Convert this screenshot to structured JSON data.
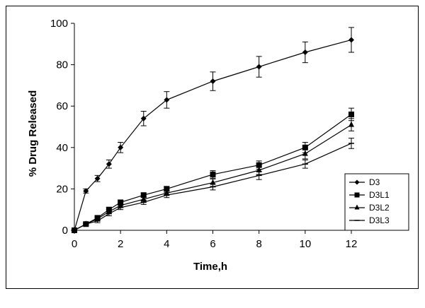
{
  "chart_data": {
    "type": "line",
    "title": "",
    "xlabel": "Time,h",
    "ylabel": "% Drug Released",
    "xlim": [
      0,
      12
    ],
    "ylim": [
      0,
      100
    ],
    "xticks": [
      0,
      2,
      4,
      6,
      8,
      10,
      12
    ],
    "yticks": [
      0,
      20,
      40,
      60,
      80,
      100
    ],
    "grid": false,
    "legend_position": "right",
    "error_bars": true,
    "series": [
      {
        "name": "D3",
        "marker": "diamond",
        "color": "#000000",
        "x": [
          0,
          0.5,
          1,
          1.5,
          2,
          3,
          4,
          6,
          8,
          10,
          12
        ],
        "y": [
          0,
          19,
          25,
          32,
          40,
          54,
          63,
          72,
          79,
          86,
          92
        ],
        "err": [
          0,
          1,
          1.5,
          2,
          2.5,
          3.5,
          4,
          4.5,
          5,
          5,
          6
        ]
      },
      {
        "name": "D3L1",
        "marker": "square",
        "color": "#000000",
        "x": [
          0,
          0.5,
          1,
          1.5,
          2,
          3,
          4,
          6,
          8,
          10,
          12
        ],
        "y": [
          0,
          3,
          6,
          10,
          13.5,
          17,
          20,
          27,
          31.5,
          40,
          56
        ],
        "err": [
          0,
          0.5,
          0.8,
          1,
          1,
          1,
          1.2,
          1.8,
          2,
          2.5,
          3
        ]
      },
      {
        "name": "D3L2",
        "marker": "triangle",
        "color": "#000000",
        "x": [
          0,
          0.5,
          1,
          1.5,
          2,
          3,
          4,
          6,
          8,
          10,
          12
        ],
        "y": [
          0,
          3,
          5.5,
          9,
          12,
          15,
          18,
          23,
          29,
          37,
          51
        ],
        "err": [
          0,
          0.5,
          0.8,
          1,
          1,
          1,
          1.2,
          1.8,
          2,
          2.5,
          3
        ]
      },
      {
        "name": "D3L3",
        "marker": "dash",
        "color": "#000000",
        "x": [
          0,
          0.5,
          1,
          1.5,
          2,
          3,
          4,
          6,
          8,
          10,
          12
        ],
        "y": [
          0,
          3,
          4.5,
          8,
          11,
          13.5,
          17,
          21,
          26.5,
          32,
          42
        ],
        "err": [
          0,
          0.5,
          0.8,
          1,
          1,
          1,
          1.2,
          1.5,
          2,
          2,
          2.5
        ]
      }
    ]
  }
}
